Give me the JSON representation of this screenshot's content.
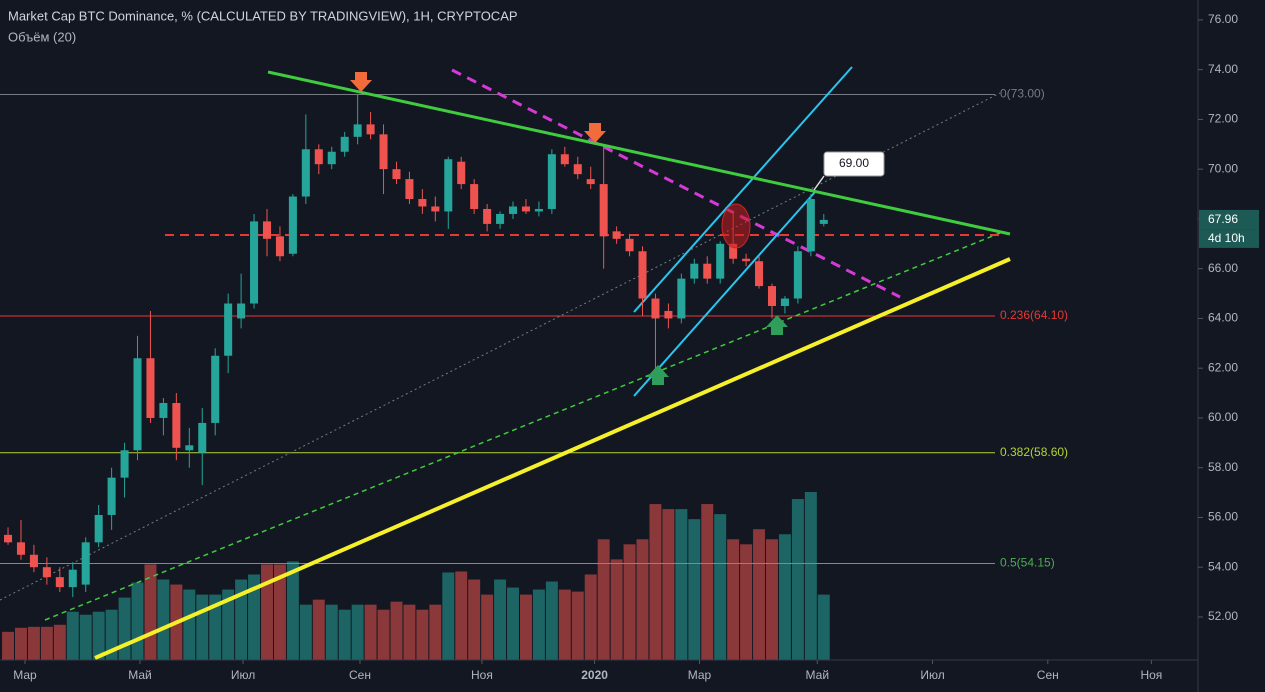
{
  "chart_data": {
    "type": "candlestick",
    "title": "Market Cap BTC Dominance, % (CALCULATED BY TRADINGVIEW), 1H, CRYPTOCAP",
    "subtitle": "Объём (20)",
    "open": [
      55.3,
      55.0,
      54.5,
      54.0,
      53.6,
      53.2,
      53.3,
      55.0,
      56.1,
      57.6,
      58.7,
      62.4,
      60.0,
      60.6,
      58.7,
      58.6,
      59.8,
      62.5,
      64.0,
      64.6,
      67.9,
      67.3,
      66.6,
      68.9,
      70.8,
      70.2,
      70.7,
      71.3,
      71.8,
      71.4,
      70.0,
      69.6,
      68.8,
      68.5,
      68.3,
      70.3,
      69.4,
      68.4,
      67.8,
      68.2,
      68.5,
      68.3,
      68.4,
      70.6,
      70.2,
      69.6,
      69.4,
      67.5,
      67.2,
      66.7,
      64.8,
      64.3,
      64.0,
      65.6,
      66.2,
      65.6,
      67.0,
      66.4,
      66.3,
      65.3,
      64.5,
      64.8,
      66.7,
      67.8
    ],
    "high": [
      55.6,
      55.9,
      54.9,
      54.4,
      54.0,
      54.2,
      55.2,
      56.5,
      58.0,
      59.0,
      63.3,
      64.3,
      60.8,
      61.0,
      59.6,
      60.4,
      62.8,
      65.0,
      65.8,
      68.2,
      68.4,
      67.7,
      69.0,
      72.2,
      71.0,
      70.9,
      71.5,
      73.0,
      72.3,
      71.8,
      70.3,
      69.9,
      69.2,
      68.9,
      70.5,
      70.5,
      69.6,
      68.6,
      68.3,
      68.7,
      68.8,
      68.7,
      70.8,
      70.9,
      70.5,
      70.1,
      71.0,
      67.7,
      67.4,
      66.9,
      65.0,
      64.6,
      65.8,
      66.4,
      66.5,
      67.1,
      68.3,
      66.6,
      66.5,
      65.4,
      64.9,
      66.9,
      69.0,
      68.2
    ],
    "low": [
      54.9,
      54.3,
      53.8,
      53.3,
      53.0,
      52.8,
      53.0,
      54.8,
      55.5,
      56.8,
      58.3,
      59.8,
      59.3,
      58.3,
      58.0,
      57.3,
      59.3,
      61.8,
      63.6,
      64.4,
      66.5,
      66.3,
      66.5,
      68.6,
      69.8,
      70.0,
      70.5,
      71.0,
      71.2,
      69.0,
      69.4,
      68.6,
      68.2,
      67.9,
      67.6,
      69.2,
      68.2,
      67.5,
      67.6,
      68.0,
      68.2,
      68.1,
      68.2,
      70.1,
      69.6,
      69.2,
      66.0,
      67.0,
      66.5,
      64.1,
      61.7,
      63.6,
      63.8,
      65.4,
      65.4,
      65.4,
      66.2,
      66.1,
      65.2,
      64.0,
      64.2,
      64.6,
      66.5,
      67.7
    ],
    "close": [
      55.0,
      54.5,
      54.0,
      53.6,
      53.2,
      53.9,
      55.0,
      56.1,
      57.6,
      58.7,
      62.4,
      60.0,
      60.6,
      58.8,
      58.9,
      59.8,
      62.5,
      64.6,
      64.6,
      67.9,
      67.2,
      66.5,
      68.9,
      70.8,
      70.2,
      70.7,
      71.3,
      71.8,
      71.4,
      70.0,
      69.6,
      68.8,
      68.5,
      68.3,
      70.4,
      69.4,
      68.4,
      67.8,
      68.2,
      68.5,
      68.3,
      68.4,
      70.6,
      70.2,
      69.8,
      69.4,
      67.3,
      67.2,
      66.7,
      64.8,
      64.0,
      64.0,
      65.6,
      66.2,
      65.6,
      67.0,
      66.4,
      66.3,
      65.3,
      64.5,
      64.8,
      66.7,
      68.8,
      67.96
    ],
    "volume": [
      28,
      32,
      33,
      33,
      35,
      48,
      45,
      48,
      50,
      62,
      77,
      95,
      80,
      75,
      70,
      65,
      65,
      70,
      80,
      85,
      95,
      95,
      98,
      55,
      60,
      55,
      50,
      55,
      55,
      50,
      58,
      55,
      50,
      55,
      87,
      88,
      80,
      65,
      80,
      72,
      65,
      70,
      78,
      70,
      68,
      85,
      120,
      100,
      115,
      120,
      155,
      150,
      150,
      140,
      155,
      145,
      120,
      115,
      130,
      120,
      125,
      160,
      167,
      65
    ],
    "up_color": "#26a69a",
    "down_color": "#ef5350",
    "ylim": [
      50.27,
      76.8
    ],
    "yticks": [
      {
        "value": 52,
        "label": "52.00"
      },
      {
        "value": 54,
        "label": "54.00"
      },
      {
        "value": 56,
        "label": "56.00"
      },
      {
        "value": 58,
        "label": "58.00"
      },
      {
        "value": 60,
        "label": "60.00"
      },
      {
        "value": 62,
        "label": "62.00"
      },
      {
        "value": 64,
        "label": "64.00"
      },
      {
        "value": 66,
        "label": "66.00"
      },
      {
        "value": 68,
        "label": "68.00"
      },
      {
        "value": 70,
        "label": "70.00"
      },
      {
        "value": 72,
        "label": "72.00"
      },
      {
        "value": 74,
        "label": "74.00"
      },
      {
        "value": 76,
        "label": "76.00"
      }
    ],
    "xlim": [
      -0.62,
      91.9
    ],
    "xticks": [
      {
        "value": 1.31,
        "label": "Мар"
      },
      {
        "value": 10.19,
        "label": "Май"
      },
      {
        "value": 18.15,
        "label": "Июл"
      },
      {
        "value": 27.18,
        "label": "Сен"
      },
      {
        "value": 36.6,
        "label": "Ноя"
      },
      {
        "value": 45.3,
        "label": "2020"
      },
      {
        "value": 53.4,
        "label": "Мар"
      },
      {
        "value": 62.5,
        "label": "Май"
      },
      {
        "value": 71.4,
        "label": "Июл"
      },
      {
        "value": 80.3,
        "label": "Сен"
      },
      {
        "value": 88.3,
        "label": "Ноя"
      }
    ],
    "levels": [
      {
        "value": 73.0,
        "label": "0(73.00)",
        "color": "#787b86"
      },
      {
        "value": 64.1,
        "label": "0.236(64.10)",
        "color": "#e53935"
      },
      {
        "value": 58.6,
        "label": "0.382(58.60)",
        "color": "#b5d334"
      },
      {
        "value": 54.15,
        "label": "0.5(54.15)",
        "color": "#4caf50"
      }
    ],
    "callout": "69.00",
    "last_price": 67.96,
    "countdown": "4d 10h"
  }
}
